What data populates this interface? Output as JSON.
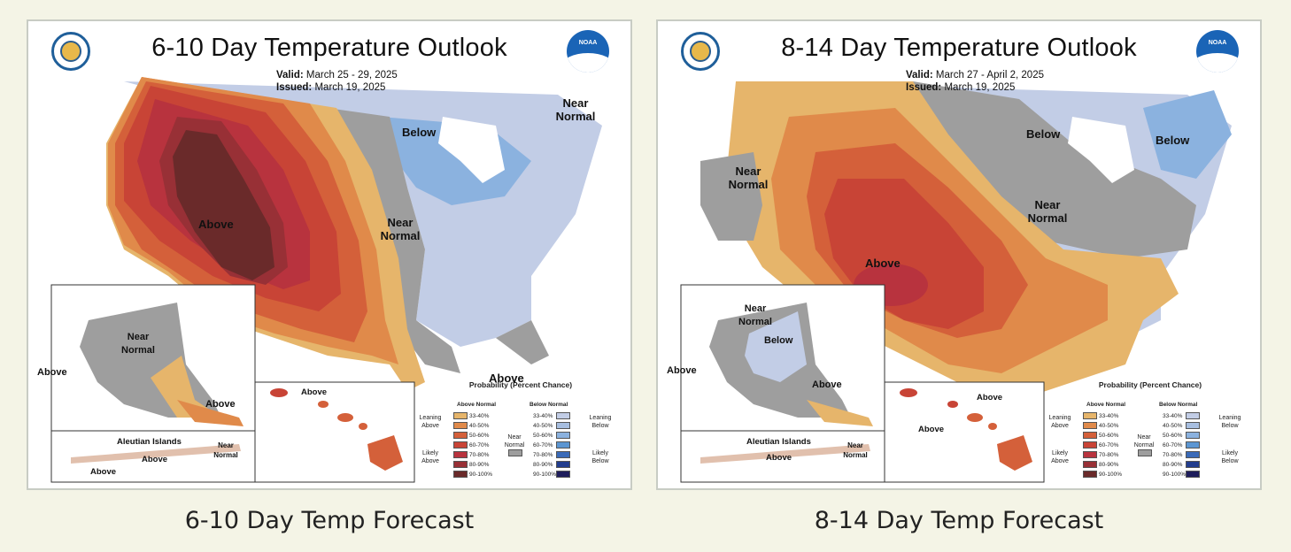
{
  "maps": [
    {
      "title": "6-10 Day Temperature Outlook",
      "valid_label": "Valid:",
      "valid_value": "March 25 - 29, 2025",
      "issued_label": "Issued:",
      "issued_value": "March 19, 2025",
      "caption": "6-10 Day Temp Forecast",
      "labels": {
        "above_main": "Above",
        "near_normal_mid": "Near Normal",
        "below": "Below",
        "near_normal_ne": "Near Normal",
        "above_se": "Above",
        "ak_near_normal": "Near Normal",
        "ak_above_w": "Above",
        "ak_above_se": "Above",
        "hi_above": "Above",
        "aleutian_title": "Aleutian Islands",
        "aleut_near_normal": "Near Normal",
        "aleut_above_1": "Above",
        "aleut_above_2": "Above"
      }
    },
    {
      "title": "8-14 Day Temperature Outlook",
      "valid_label": "Valid:",
      "valid_value": "March 27 - April 2, 2025",
      "issued_label": "Issued:",
      "issued_value": "March 19, 2025",
      "caption": "8-14 Day Temp Forecast",
      "labels": {
        "above_main": "Above",
        "near_normal_mid": "Near Normal",
        "below": "Below",
        "below_ne": "Below",
        "near_normal_w": "Near Normal",
        "ak_near_normal": "Near Normal",
        "ak_below": "Below",
        "ak_above_w": "Above",
        "ak_above_se": "Above",
        "hi_above_1": "Above",
        "hi_above_2": "Above",
        "aleutian_title": "Aleutian Islands",
        "aleut_near_normal": "Near Normal",
        "aleut_above_1": "Above"
      }
    }
  ],
  "legend": {
    "title": "Probability (Percent Chance)",
    "above_head": "Above Normal",
    "below_head": "Below Normal",
    "leaning_above": "Leaning Above",
    "likely_above": "Likely Above",
    "near_normal": "Near Normal",
    "leaning_below": "Leaning Below",
    "likely_below": "Likely Below",
    "ranges": [
      "33-40%",
      "40-50%",
      "50-60%",
      "60-70%",
      "70-80%",
      "80-90%",
      "90-100%"
    ],
    "above_colors": [
      "#e6b56b",
      "#e08a4a",
      "#d4603a",
      "#c84436",
      "#b8333e",
      "#983036",
      "#6a2a2a"
    ],
    "below_colors": [
      "#c2cde6",
      "#a7bee0",
      "#8bb2df",
      "#5c96d2",
      "#3a6ab8",
      "#223d8e",
      "#1e1d5c"
    ],
    "near_color": "#9e9e9e"
  },
  "colors": {
    "background": "#f4f4e6",
    "near_normal": "#9e9e9e"
  }
}
